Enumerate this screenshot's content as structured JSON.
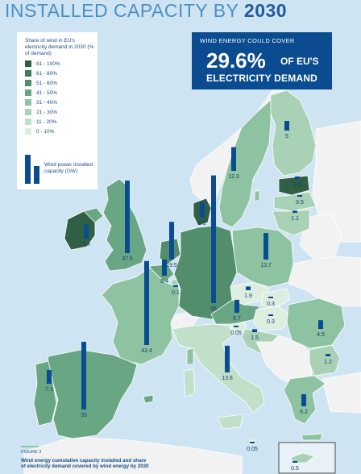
{
  "title": {
    "main": "INSTALLED CAPACITY BY ",
    "year": "2030"
  },
  "callout": {
    "top": "WIND ENERGY COULD COVER",
    "percent": "29.6%",
    "of": "OF EU'S",
    "bottom": "ELECTRICITY DEMAND"
  },
  "legend": {
    "title": "Share of wind in EU's electricity demand in 2030 (% of demand)",
    "ranges": [
      {
        "label": "81 - 100%",
        "color": "#2f5f45"
      },
      {
        "label": "61 - 80%",
        "color": "#417a5a"
      },
      {
        "label": "51 - 60%",
        "color": "#528e6c"
      },
      {
        "label": "41 - 50%",
        "color": "#68a684"
      },
      {
        "label": "31 - 40%",
        "color": "#8dc3a1"
      },
      {
        "label": "21 - 30%",
        "color": "#a8d1b5"
      },
      {
        "label": "11 - 20%",
        "color": "#c2dfca"
      },
      {
        "label": "0 - 10%",
        "color": "#dceee0"
      }
    ],
    "wind_power_label": "Wind power installed capacity (GW)"
  },
  "countries": [
    {
      "id": "norway",
      "value": "",
      "color": "#f2f2f2"
    },
    {
      "id": "sweden",
      "value": "12.3",
      "color": "#8dc3a1"
    },
    {
      "id": "finland",
      "value": "5",
      "color": "#a8d1b5"
    },
    {
      "id": "estonia",
      "value": "1.3",
      "color": "#2f5f45"
    },
    {
      "id": "latvia",
      "value": "0.5",
      "color": "#a8d1b5"
    },
    {
      "id": "lithuania",
      "value": "1.1",
      "color": "#a8d1b5"
    },
    {
      "id": "denmark",
      "value": "8.2",
      "color": "#2f5f45"
    },
    {
      "id": "ireland",
      "value": "7.4",
      "color": "#2f5f45"
    },
    {
      "id": "uk",
      "value": "37.5",
      "color": "#68a684"
    },
    {
      "id": "netherlands",
      "value": "19.5",
      "color": "#528e6c"
    },
    {
      "id": "belgium",
      "value": "8.4",
      "color": "#68a684"
    },
    {
      "id": "luxembourg",
      "value": "0.1",
      "color": "#a8d1b5"
    },
    {
      "id": "germany",
      "value": "66",
      "color": "#528e6c"
    },
    {
      "id": "poland",
      "value": "13.7",
      "color": "#8dc3a1"
    },
    {
      "id": "czech",
      "value": "1.9",
      "color": "#dceee0"
    },
    {
      "id": "slovakia",
      "value": "0.3",
      "color": "#dceee0"
    },
    {
      "id": "austria",
      "value": "6.7",
      "color": "#68a684"
    },
    {
      "id": "hungary",
      "value": "0.3",
      "color": "#dceee0"
    },
    {
      "id": "slovenia",
      "value": "0.05",
      "color": "#dceee0"
    },
    {
      "id": "croatia",
      "value": "1.5",
      "color": "#a8d1b5"
    },
    {
      "id": "romania",
      "value": "4.5",
      "color": "#8dc3a1"
    },
    {
      "id": "bulgaria",
      "value": "1.2",
      "color": "#a8d1b5"
    },
    {
      "id": "greece",
      "value": "6.2",
      "color": "#8dc3a1"
    },
    {
      "id": "italy",
      "value": "13.8",
      "color": "#c2dfca"
    },
    {
      "id": "france",
      "value": "43.4",
      "color": "#8dc3a1"
    },
    {
      "id": "spain",
      "value": "35",
      "color": "#68a684"
    },
    {
      "id": "portugal",
      "value": "7.1",
      "color": "#68a684"
    },
    {
      "id": "malta",
      "value": "0.05",
      "color": "#dceee0"
    },
    {
      "id": "cyprus",
      "value": "0.5",
      "color": "#a8d1b5"
    }
  ],
  "figure": {
    "label": "FIGURE 3",
    "caption": "Wind energy cumulative capacity installed and share of electricity demand covered by wind energy by 2030"
  }
}
